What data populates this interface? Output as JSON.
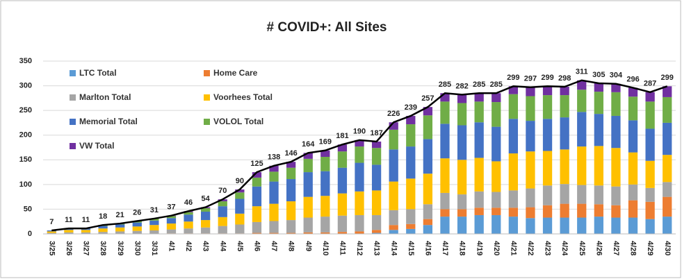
{
  "chart_data": {
    "type": "stacked-bar-line",
    "title": "# COVID+: All Sites",
    "categories": [
      "3/25",
      "3/26",
      "3/27",
      "3/28",
      "3/29",
      "3/30",
      "3/31",
      "4/1",
      "4/2",
      "4/3",
      "4/4",
      "4/5",
      "4/6",
      "4/7",
      "4/8",
      "4/9",
      "4/10",
      "4/11",
      "4/12",
      "4/13",
      "4/14",
      "4/15",
      "4/16",
      "4/17",
      "4/18",
      "4/19",
      "4/20",
      "4/21",
      "4/22",
      "4/23",
      "4/24",
      "4/25",
      "4/26",
      "4/27",
      "4/28",
      "4/29",
      "4/30"
    ],
    "series": [
      {
        "name": "LTC Total",
        "color": "#5b9bd5",
        "values": [
          0,
          0,
          0,
          0,
          0,
          0,
          0,
          0,
          0,
          0,
          0,
          0,
          0,
          0,
          0,
          0,
          0,
          0,
          0,
          2,
          8,
          10,
          18,
          35,
          35,
          38,
          38,
          35,
          32,
          33,
          33,
          33,
          35,
          33,
          33,
          30,
          35
        ]
      },
      {
        "name": "Home Care",
        "color": "#ed7d31",
        "values": [
          0,
          0,
          0,
          0,
          0,
          0,
          0,
          1,
          1,
          1,
          1,
          1,
          2,
          2,
          2,
          3,
          3,
          4,
          5,
          6,
          10,
          10,
          12,
          15,
          15,
          15,
          15,
          18,
          22,
          25,
          28,
          28,
          25,
          25,
          35,
          35,
          40
        ]
      },
      {
        "name": "Marlton Total",
        "color": "#a5a5a5",
        "values": [
          2,
          3,
          3,
          4,
          5,
          6,
          7,
          8,
          10,
          12,
          15,
          18,
          22,
          24,
          26,
          30,
          32,
          33,
          33,
          30,
          30,
          30,
          30,
          33,
          30,
          33,
          32,
          35,
          38,
          40,
          40,
          38,
          38,
          38,
          32,
          28,
          30
        ]
      },
      {
        "name": "Voorhees Total",
        "color": "#ffc000",
        "values": [
          3,
          5,
          5,
          7,
          8,
          9,
          11,
          12,
          14,
          15,
          18,
          22,
          32,
          35,
          38,
          42,
          42,
          45,
          48,
          50,
          58,
          62,
          62,
          70,
          70,
          68,
          62,
          75,
          75,
          70,
          70,
          78,
          80,
          78,
          65,
          55,
          55
        ]
      },
      {
        "name": "Memorial Total",
        "color": "#4472c4",
        "values": [
          2,
          3,
          3,
          5,
          6,
          8,
          9,
          11,
          14,
          17,
          22,
          30,
          40,
          45,
          45,
          50,
          50,
          52,
          58,
          52,
          65,
          65,
          70,
          70,
          70,
          72,
          70,
          70,
          62,
          65,
          65,
          70,
          65,
          65,
          65,
          65,
          65
        ]
      },
      {
        "name": "VOLOL Total",
        "color": "#70ad47",
        "values": [
          0,
          0,
          0,
          2,
          2,
          3,
          4,
          4,
          5,
          7,
          10,
          13,
          18,
          20,
          23,
          27,
          29,
          33,
          33,
          34,
          40,
          45,
          48,
          45,
          45,
          42,
          50,
          50,
          50,
          48,
          45,
          45,
          45,
          48,
          48,
          55,
          52
        ]
      },
      {
        "name": "VW Total",
        "color": "#7030a0",
        "values": [
          0,
          0,
          0,
          0,
          0,
          0,
          0,
          1,
          2,
          2,
          4,
          6,
          11,
          12,
          12,
          12,
          13,
          14,
          13,
          13,
          15,
          17,
          17,
          17,
          17,
          17,
          18,
          16,
          18,
          18,
          17,
          19,
          17,
          17,
          18,
          19,
          22
        ]
      }
    ],
    "total": {
      "color": "#000000",
      "values": [
        7,
        11,
        11,
        18,
        21,
        26,
        31,
        37,
        46,
        54,
        70,
        90,
        125,
        138,
        146,
        164,
        169,
        181,
        190,
        187,
        226,
        239,
        257,
        285,
        282,
        285,
        285,
        299,
        297,
        299,
        298,
        311,
        305,
        304,
        296,
        287,
        299
      ]
    },
    "ylim": [
      0,
      350
    ],
    "yticks": [
      0,
      50,
      100,
      150,
      200,
      250,
      300,
      350
    ],
    "grid": true,
    "legend": "upper left"
  }
}
